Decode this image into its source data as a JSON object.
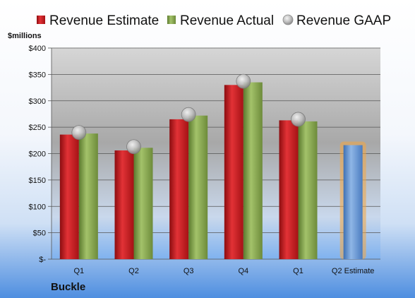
{
  "chart_data": {
    "type": "bar",
    "unit_label": "$millions",
    "company": "Buckle",
    "categories": [
      "Q1",
      "Q2",
      "Q3",
      "Q4",
      "Q1",
      "Q2 Estimate"
    ],
    "series": [
      {
        "name": "Revenue Estimate",
        "kind": "bar",
        "color": "#c0171a",
        "values": [
          236,
          206,
          265,
          330,
          263,
          null
        ]
      },
      {
        "name": "Revenue Actual",
        "kind": "bar",
        "color": "#7f9e46",
        "values": [
          238,
          211,
          272,
          335,
          261,
          null
        ]
      },
      {
        "name": "Revenue GAAP",
        "kind": "marker",
        "color": "#b8b8b8",
        "values": [
          240,
          213,
          274,
          337,
          265,
          null
        ]
      }
    ],
    "estimate_bar": {
      "category_index": 5,
      "value": 216,
      "color": "#5b8fcf",
      "highlight": "#f4a640"
    },
    "ylim": [
      0,
      400
    ],
    "yticks": [
      0,
      50,
      100,
      150,
      200,
      250,
      300,
      350,
      400
    ],
    "ytick_labels": [
      "$-",
      "$50",
      "$100",
      "$150",
      "$200",
      "$250",
      "$300",
      "$350",
      "$400"
    ],
    "grid": true,
    "legend_position": "top"
  }
}
